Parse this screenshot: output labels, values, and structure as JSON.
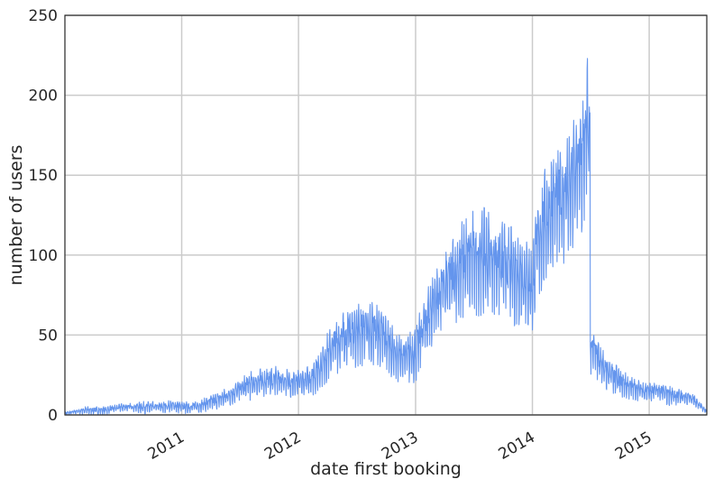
{
  "chart_data": {
    "type": "line",
    "title": "",
    "xlabel": "date first booking",
    "ylabel": "number of users",
    "ylim": [
      0,
      250
    ],
    "xlim": [
      "2010-01-01",
      "2015-06-30"
    ],
    "y_ticks": [
      0,
      50,
      100,
      150,
      200,
      250
    ],
    "x_ticks": [
      {
        "label": "2011",
        "date": "2011-01-01"
      },
      {
        "label": "2012",
        "date": "2012-01-01"
      },
      {
        "label": "2013",
        "date": "2013-01-01"
      },
      {
        "label": "2014",
        "date": "2014-01-01"
      },
      {
        "label": "2015",
        "date": "2015-01-01"
      }
    ],
    "grid": true,
    "legend": "none",
    "colors": {
      "line": "#6495ED",
      "grid": "#cbcbcb",
      "axis": "#262626",
      "background": "#ffffff"
    },
    "series": [
      {
        "x": [
          "2010-01-01",
          "2010-02-01",
          "2010-03-01",
          "2010-04-01",
          "2010-05-01",
          "2010-06-01",
          "2010-07-01",
          "2010-08-01",
          "2010-09-01",
          "2010-10-01",
          "2010-11-01",
          "2010-12-01",
          "2011-01-01",
          "2011-02-01",
          "2011-03-01",
          "2011-04-01",
          "2011-05-01",
          "2011-06-01",
          "2011-07-01",
          "2011-08-01",
          "2011-09-01",
          "2011-10-01",
          "2011-11-01",
          "2011-12-01",
          "2012-01-01",
          "2012-02-01",
          "2012-03-01",
          "2012-04-01",
          "2012-05-01",
          "2012-06-01",
          "2012-07-01",
          "2012-08-01",
          "2012-09-01",
          "2012-10-01",
          "2012-11-01",
          "2012-12-01",
          "2013-01-01",
          "2013-02-01",
          "2013-03-01",
          "2013-04-01",
          "2013-05-01",
          "2013-06-01",
          "2013-07-01",
          "2013-08-01",
          "2013-09-01",
          "2013-10-01",
          "2013-11-01",
          "2013-12-01",
          "2014-01-01",
          "2014-01-10",
          "2014-02-01",
          "2014-03-01",
          "2014-04-01",
          "2014-05-01",
          "2014-06-01",
          "2014-06-20",
          "2014-06-25",
          "2014-06-30",
          "2014-07-01",
          "2014-08-01",
          "2014-09-01",
          "2014-10-01",
          "2014-11-01",
          "2014-12-01",
          "2015-01-01",
          "2015-02-01",
          "2015-03-01",
          "2015-04-01",
          "2015-05-01",
          "2015-06-01",
          "2015-06-30"
        ],
        "values": [
          1,
          2,
          3,
          3,
          3,
          4,
          5,
          5,
          5,
          5,
          5,
          6,
          5,
          5,
          6,
          8,
          10,
          13,
          16,
          19,
          21,
          22,
          22,
          21,
          20,
          22,
          28,
          38,
          46,
          51,
          53,
          54,
          53,
          47,
          38,
          36,
          40,
          58,
          72,
          80,
          88,
          95,
          99,
          100,
          98,
          94,
          90,
          88,
          80,
          100,
          118,
          130,
          136,
          145,
          158,
          175,
          185,
          170,
          44,
          32,
          26,
          21,
          18,
          16,
          15,
          15,
          13,
          12,
          11,
          8,
          2
        ],
        "spread": [
          1,
          1,
          2,
          2,
          2,
          2,
          2,
          2,
          3,
          3,
          3,
          3,
          3,
          3,
          3,
          4,
          4,
          5,
          6,
          7,
          7,
          8,
          7,
          7,
          7,
          8,
          10,
          12,
          14,
          16,
          16,
          16,
          16,
          14,
          12,
          12,
          14,
          16,
          20,
          22,
          24,
          26,
          26,
          26,
          26,
          24,
          24,
          22,
          22,
          26,
          28,
          30,
          30,
          34,
          36,
          40,
          42,
          42,
          14,
          10,
          8,
          7,
          6,
          5,
          5,
          5,
          5,
          4,
          4,
          3,
          1
        ]
      }
    ]
  }
}
